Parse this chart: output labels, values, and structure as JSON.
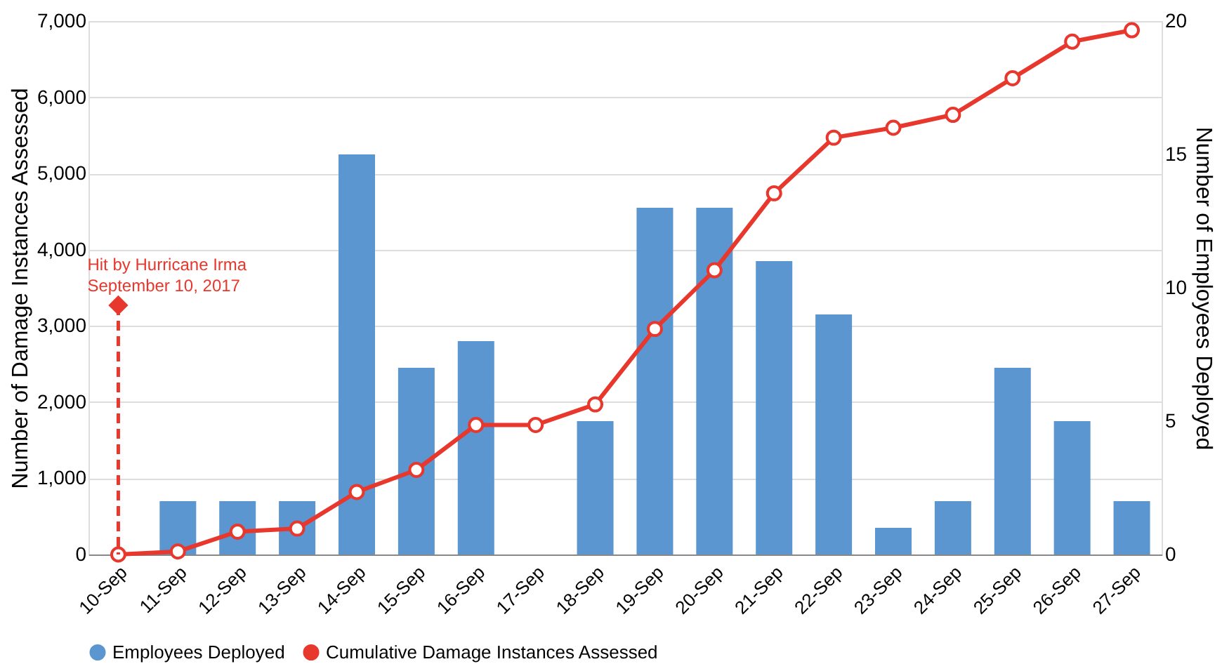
{
  "chart_data": {
    "type": "bar",
    "categories": [
      "10-Sep",
      "11-Sep",
      "12-Sep",
      "13-Sep",
      "14-Sep",
      "15-Sep",
      "16-Sep",
      "17-Sep",
      "18-Sep",
      "19-Sep",
      "20-Sep",
      "21-Sep",
      "22-Sep",
      "23-Sep",
      "24-Sep",
      "25-Sep",
      "26-Sep",
      "27-Sep"
    ],
    "series": [
      {
        "name": "Employees Deployed",
        "axis": "y2",
        "color": "#5b96d0",
        "values": [
          0,
          2,
          2,
          2,
          15,
          7,
          8,
          0,
          5,
          13,
          13,
          11,
          9,
          1,
          2,
          7,
          5,
          2
        ]
      },
      {
        "name": "Cumulative Damage Instances Assessed",
        "type": "line",
        "color": "#e8372c",
        "marker": "circle",
        "values": [
          0,
          40,
          300,
          340,
          820,
          1110,
          1700,
          1700,
          1970,
          2960,
          3730,
          4740,
          5470,
          5600,
          5770,
          6250,
          6730,
          6880
        ]
      },
      {
        "type": "lollipop",
        "color": "#e8372c",
        "marker": "diamond",
        "line_style": "dashed",
        "values": [
          3270,
          null,
          null,
          null,
          null,
          null,
          null,
          null,
          null,
          null,
          null,
          null,
          null,
          null,
          null,
          null,
          null,
          null
        ]
      }
    ],
    "ylabel": "Number of Damage Instances Assessed",
    "y2label": "Number of Employees Deployed",
    "ylim": [
      0,
      7000
    ],
    "yticks": [
      0,
      {
        "value": 1000,
        "label": "1,000"
      },
      {
        "value": 2000,
        "label": "2,000"
      },
      {
        "value": 3000,
        "label": "3,000"
      },
      {
        "value": 4000,
        "label": "4,000"
      },
      {
        "value": 5000,
        "label": "5,000"
      },
      {
        "value": 6000,
        "label": "6,000"
      },
      {
        "value": 7000,
        "label": "7,000"
      }
    ],
    "y2lim": [
      0,
      20
    ],
    "y2ticks": [
      0,
      5,
      10,
      15,
      20
    ],
    "annotations": [
      "Hit by Hurricane Irma\nSeptember 10, 2017"
    ],
    "grid": "y",
    "legend": "bottom"
  }
}
